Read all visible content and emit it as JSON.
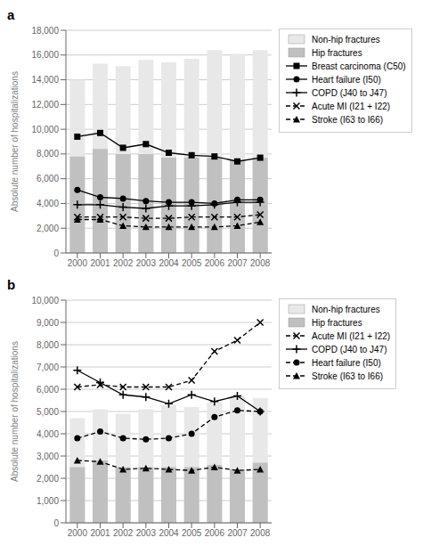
{
  "chart_data": [
    {
      "type": "bar",
      "annotations": [
        "a"
      ],
      "ylabel": "Absolute number of hospitalizations",
      "categories": [
        "2000",
        "2001",
        "2002",
        "2003",
        "2004",
        "2005",
        "2006",
        "2007",
        "2008"
      ],
      "stacked": false,
      "grid": true,
      "legend": "right",
      "ylim": [
        0,
        18000
      ],
      "yticks": [
        0,
        {
          "value": 2000,
          "label": "2,000"
        },
        {
          "value": 4000,
          "label": "4,000"
        },
        {
          "value": 6000,
          "label": "6,000"
        },
        {
          "value": 8000,
          "label": "8,000"
        },
        {
          "value": 10000,
          "label": "10,000"
        },
        {
          "value": 12000,
          "label": "12,000"
        },
        {
          "value": 14000,
          "label": "14,000"
        },
        {
          "value": 16000,
          "label": "16,000"
        },
        {
          "value": 18000,
          "label": "18,000"
        }
      ],
      "series": [
        {
          "name": "Non-hip fractures",
          "type": "bar",
          "color": "#e8e8e8",
          "values": [
            14000,
            15300,
            15100,
            15600,
            15400,
            15700,
            16400,
            16100,
            16400
          ]
        },
        {
          "name": "Hip fractures",
          "type": "bar",
          "color": "#c0c0c0",
          "values": [
            7800,
            8400,
            8000,
            8000,
            7700,
            7700,
            7700,
            7500,
            7700
          ]
        },
        {
          "name": "Breast carcinoma (C50)",
          "type": "line",
          "color": "#000000",
          "marker": "square",
          "line_style": "solid",
          "values": [
            9400,
            9700,
            8500,
            8800,
            8100,
            7900,
            7800,
            7400,
            7700
          ]
        },
        {
          "name": "Heart failure (I50)",
          "type": "line",
          "color": "#000000",
          "marker": "circle",
          "line_style": "solid",
          "values": [
            5100,
            4500,
            4400,
            4200,
            4100,
            4100,
            4000,
            4300,
            4300
          ]
        },
        {
          "name": "COPD (J40 to J47)",
          "type": "line",
          "color": "#000000",
          "marker": "plus",
          "line_style": "solid",
          "values": [
            3900,
            3900,
            3700,
            3600,
            3800,
            3800,
            3900,
            4100,
            4100
          ]
        },
        {
          "name": "Acute MI (I21 + I22)",
          "type": "line",
          "color": "#000000",
          "marker": "x",
          "line_style": "dashed",
          "values": [
            2900,
            2900,
            2900,
            2800,
            2800,
            2900,
            2900,
            2900,
            3100
          ]
        },
        {
          "name": "Stroke (I63 to I66)",
          "type": "line",
          "color": "#000000",
          "marker": "triangle",
          "line_style": "dashed",
          "values": [
            2700,
            2700,
            2200,
            2100,
            2100,
            2100,
            2100,
            2200,
            2500
          ]
        }
      ]
    },
    {
      "type": "bar",
      "annotations": [
        "b"
      ],
      "ylabel": "Absolute number of hospitalizations",
      "categories": [
        "2000",
        "2001",
        "2002",
        "2003",
        "2004",
        "2005",
        "2006",
        "2007",
        "2008"
      ],
      "stacked": false,
      "grid": true,
      "legend": "right",
      "ylim": [
        0,
        10000
      ],
      "yticks": [
        0,
        {
          "value": 1000,
          "label": "1,000"
        },
        {
          "value": 2000,
          "label": "2,000"
        },
        {
          "value": 3000,
          "label": "3,000"
        },
        {
          "value": 4000,
          "label": "4,000"
        },
        {
          "value": 5000,
          "label": "5,000"
        },
        {
          "value": 6000,
          "label": "6,000"
        },
        {
          "value": 7000,
          "label": "7,000"
        },
        {
          "value": 8000,
          "label": "8,000"
        },
        {
          "value": 9000,
          "label": "9,000"
        },
        {
          "value": 10000,
          "label": "10,000"
        }
      ],
      "series": [
        {
          "name": "Non-hip fractures",
          "type": "bar",
          "color": "#e8e8e8",
          "values": [
            4700,
            5100,
            4900,
            5100,
            5300,
            5200,
            5400,
            5700,
            5600
          ]
        },
        {
          "name": "Hip fractures",
          "type": "bar",
          "color": "#c0c0c0",
          "values": [
            2500,
            2800,
            2500,
            2500,
            2500,
            2500,
            2600,
            2400,
            2700
          ]
        },
        {
          "name": "Acute MI (I21 + I22)",
          "type": "line",
          "color": "#000000",
          "marker": "x",
          "line_style": "dashed",
          "values": [
            6100,
            6200,
            6100,
            6100,
            6100,
            6400,
            7700,
            8200,
            9000
          ]
        },
        {
          "name": "COPD (J40 to J47)",
          "type": "line",
          "color": "#000000",
          "marker": "plus",
          "line_style": "solid",
          "values": [
            6850,
            6300,
            5750,
            5650,
            5350,
            5750,
            5450,
            5700,
            5000
          ]
        },
        {
          "name": "Heart failure (I50)",
          "type": "line",
          "color": "#000000",
          "marker": "circle",
          "line_style": "dashed",
          "values": [
            3800,
            4100,
            3800,
            3750,
            3800,
            4000,
            4750,
            5050,
            5000
          ]
        },
        {
          "name": "Stroke (I63 to I66)",
          "type": "line",
          "color": "#000000",
          "marker": "triangle",
          "line_style": "dashed",
          "values": [
            2800,
            2750,
            2400,
            2450,
            2400,
            2350,
            2500,
            2350,
            2400
          ]
        }
      ]
    }
  ]
}
